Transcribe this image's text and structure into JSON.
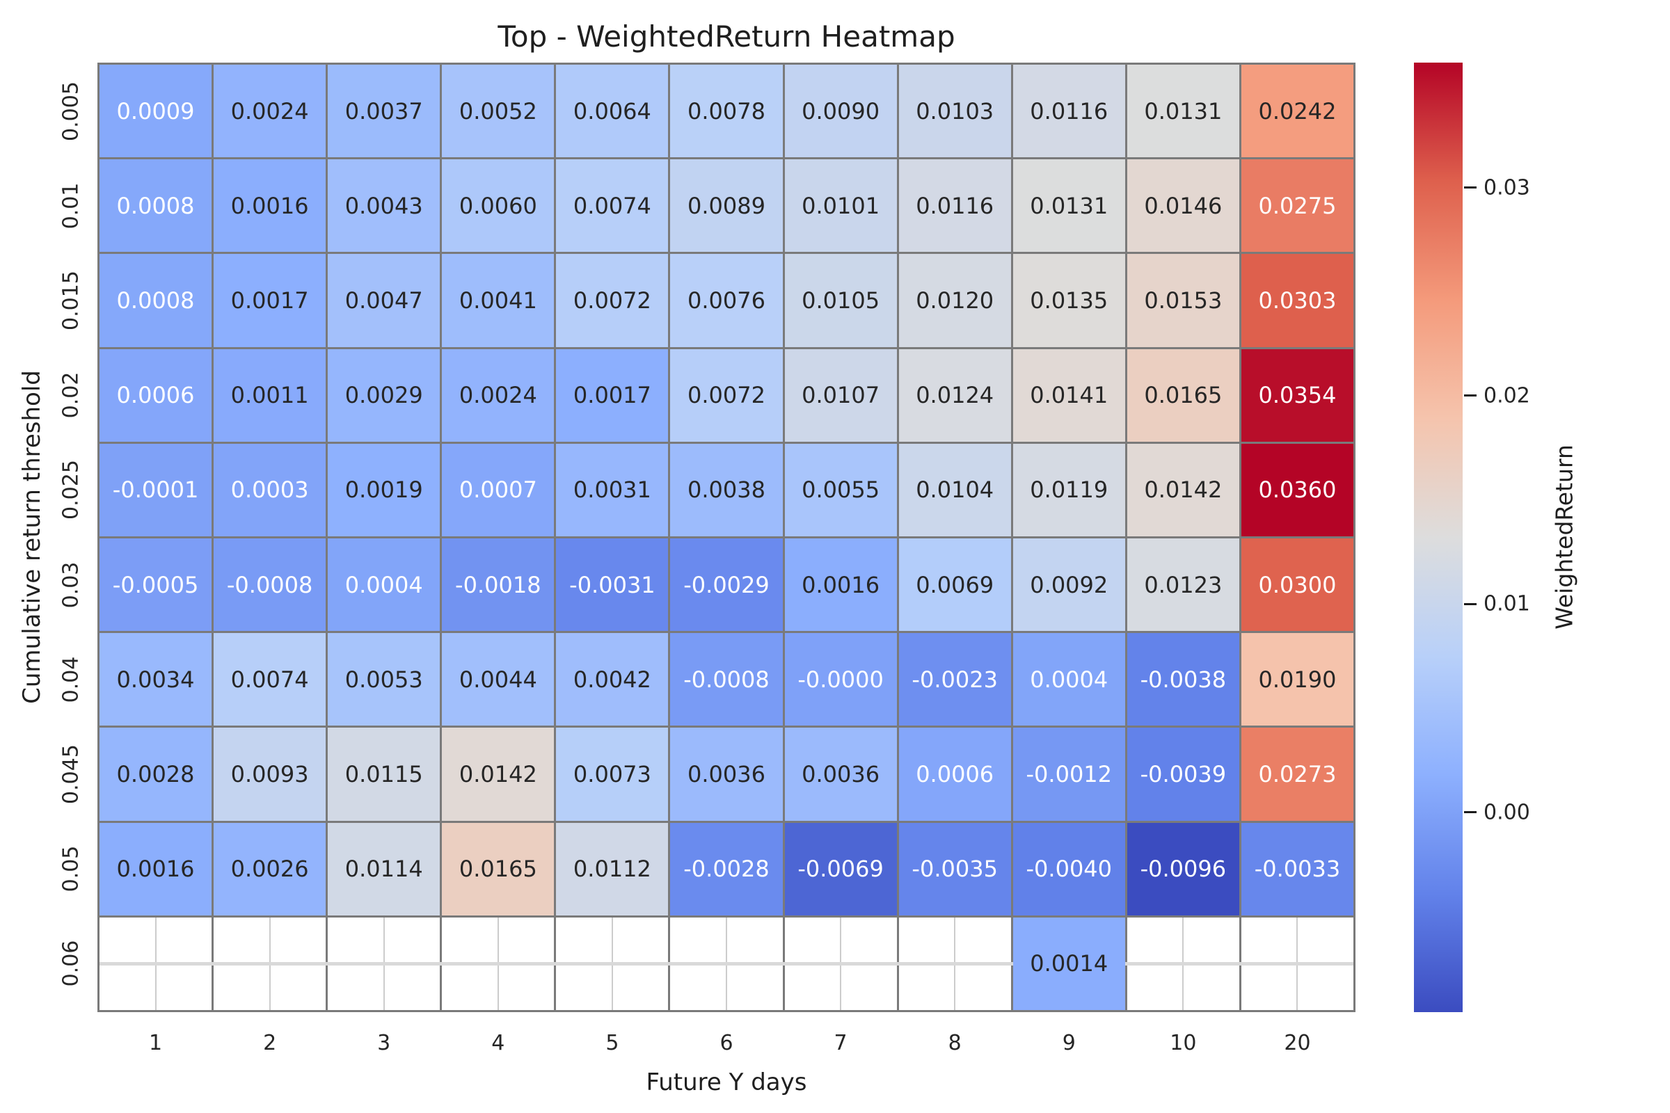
{
  "chart_data": {
    "type": "heatmap",
    "title": "Top - WeightedReturn Heatmap",
    "xlabel": "Future Y days",
    "ylabel": "Cumulative return threshold",
    "x_categories": [
      "1",
      "2",
      "3",
      "4",
      "5",
      "6",
      "7",
      "8",
      "9",
      "10",
      "20"
    ],
    "y_categories": [
      "0.005",
      "0.01",
      "0.015",
      "0.02",
      "0.025",
      "0.03",
      "0.04",
      "0.045",
      "0.05",
      "0.06"
    ],
    "cells": [
      [
        "0.0009",
        "0.0024",
        "0.0037",
        "0.0052",
        "0.0064",
        "0.0078",
        "0.0090",
        "0.0103",
        "0.0116",
        "0.0131",
        "0.0242"
      ],
      [
        "0.0008",
        "0.0016",
        "0.0043",
        "0.0060",
        "0.0074",
        "0.0089",
        "0.0101",
        "0.0116",
        "0.0131",
        "0.0146",
        "0.0275"
      ],
      [
        "0.0008",
        "0.0017",
        "0.0047",
        "0.0041",
        "0.0072",
        "0.0076",
        "0.0105",
        "0.0120",
        "0.0135",
        "0.0153",
        "0.0303"
      ],
      [
        "0.0006",
        "0.0011",
        "0.0029",
        "0.0024",
        "0.0017",
        "0.0072",
        "0.0107",
        "0.0124",
        "0.0141",
        "0.0165",
        "0.0354"
      ],
      [
        "-0.0001",
        "0.0003",
        "0.0019",
        "0.0007",
        "0.0031",
        "0.0038",
        "0.0055",
        "0.0104",
        "0.0119",
        "0.0142",
        "0.0360"
      ],
      [
        "-0.0005",
        "-0.0008",
        "0.0004",
        "-0.0018",
        "-0.0031",
        "-0.0029",
        "0.0016",
        "0.0069",
        "0.0092",
        "0.0123",
        "0.0300"
      ],
      [
        "0.0034",
        "0.0074",
        "0.0053",
        "0.0044",
        "0.0042",
        "-0.0008",
        "-0.0000",
        "-0.0023",
        "0.0004",
        "-0.0038",
        "0.0190"
      ],
      [
        "0.0028",
        "0.0093",
        "0.0115",
        "0.0142",
        "0.0073",
        "0.0036",
        "0.0036",
        "0.0006",
        "-0.0012",
        "-0.0039",
        "0.0273"
      ],
      [
        "0.0016",
        "0.0026",
        "0.0114",
        "0.0165",
        "0.0112",
        "-0.0028",
        "-0.0069",
        "-0.0035",
        "-0.0040",
        "-0.0096",
        "-0.0033"
      ],
      [
        null,
        null,
        null,
        null,
        null,
        null,
        null,
        null,
        "0.0014",
        null,
        null
      ]
    ],
    "vmin": -0.0096,
    "vmax": 0.036,
    "colormap": {
      "name": "coolwarm",
      "stops": [
        {
          "t": 0.0,
          "color": "#3b4cc0"
        },
        {
          "t": 0.125,
          "color": "#6282ea"
        },
        {
          "t": 0.25,
          "color": "#8db0fe"
        },
        {
          "t": 0.375,
          "color": "#b8d0f9"
        },
        {
          "t": 0.5,
          "color": "#dddddd"
        },
        {
          "t": 0.625,
          "color": "#f5c4ad"
        },
        {
          "t": 0.75,
          "color": "#f49a7b"
        },
        {
          "t": 0.875,
          "color": "#de604d"
        },
        {
          "t": 1.0,
          "color": "#b40426"
        }
      ]
    },
    "colorbar": {
      "label": "WeightedReturn",
      "ticks": [
        {
          "value": 0.0,
          "label": "0.00"
        },
        {
          "value": 0.01,
          "label": "0.01"
        },
        {
          "value": 0.02,
          "label": "0.02"
        },
        {
          "value": 0.03,
          "label": "0.03"
        }
      ]
    },
    "grid_on": true,
    "legend_position": "right-colorbar",
    "colors": {
      "cell_line": "#7a7a7a",
      "annotation_dark": "#262626",
      "annotation_light": "#ffffff",
      "nan_cell_background": "#ffffff",
      "nan_grid_vertical": "#cccccc",
      "nan_grid_horizontal": "#d9d9d9",
      "figure_background": "#ffffff",
      "tick_text": "#262626"
    }
  }
}
